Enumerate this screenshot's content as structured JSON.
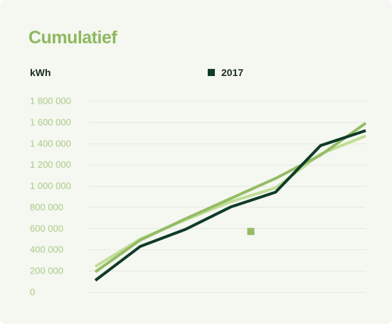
{
  "card": {
    "title": "Cumulatief",
    "unit_label": "kWh"
  },
  "colors": {
    "background": "#f5f7f1",
    "title": "#8db85e",
    "tick_label": "#a9cb86",
    "grid": "#e6e9e1"
  },
  "chart_data": {
    "type": "line",
    "x": [
      1,
      2,
      3,
      4,
      5,
      6,
      7
    ],
    "ylim": [
      0,
      1800000
    ],
    "yticks": [
      0,
      200000,
      400000,
      600000,
      800000,
      1000000,
      1200000,
      1400000,
      1600000,
      1800000
    ],
    "ytick_labels": [
      "0",
      "200 000",
      "400 000",
      "600 000",
      "800 000",
      "1 000 000",
      "1 200 000",
      "1 400 000",
      "1 600 000",
      "1 800 000"
    ],
    "grid": true,
    "legend_position": "top",
    "series": [
      {
        "values": [
          240000,
          500000,
          680000,
          850000,
          980000,
          1300000,
          1470000
        ],
        "color": "#c0de97",
        "in_legend": false
      },
      {
        "values": [
          190000,
          490000,
          690000,
          880000,
          1070000,
          1290000,
          1590000
        ],
        "color": "#94bc64",
        "in_legend": false
      },
      {
        "name": "2017",
        "values": [
          110000,
          430000,
          590000,
          800000,
          940000,
          1380000,
          1520000
        ],
        "color": "#0f3b29",
        "in_legend": true
      }
    ],
    "annotations": [
      {
        "type": "marker",
        "x": 4.45,
        "y": 570000,
        "color": "#94bc64"
      }
    ]
  }
}
